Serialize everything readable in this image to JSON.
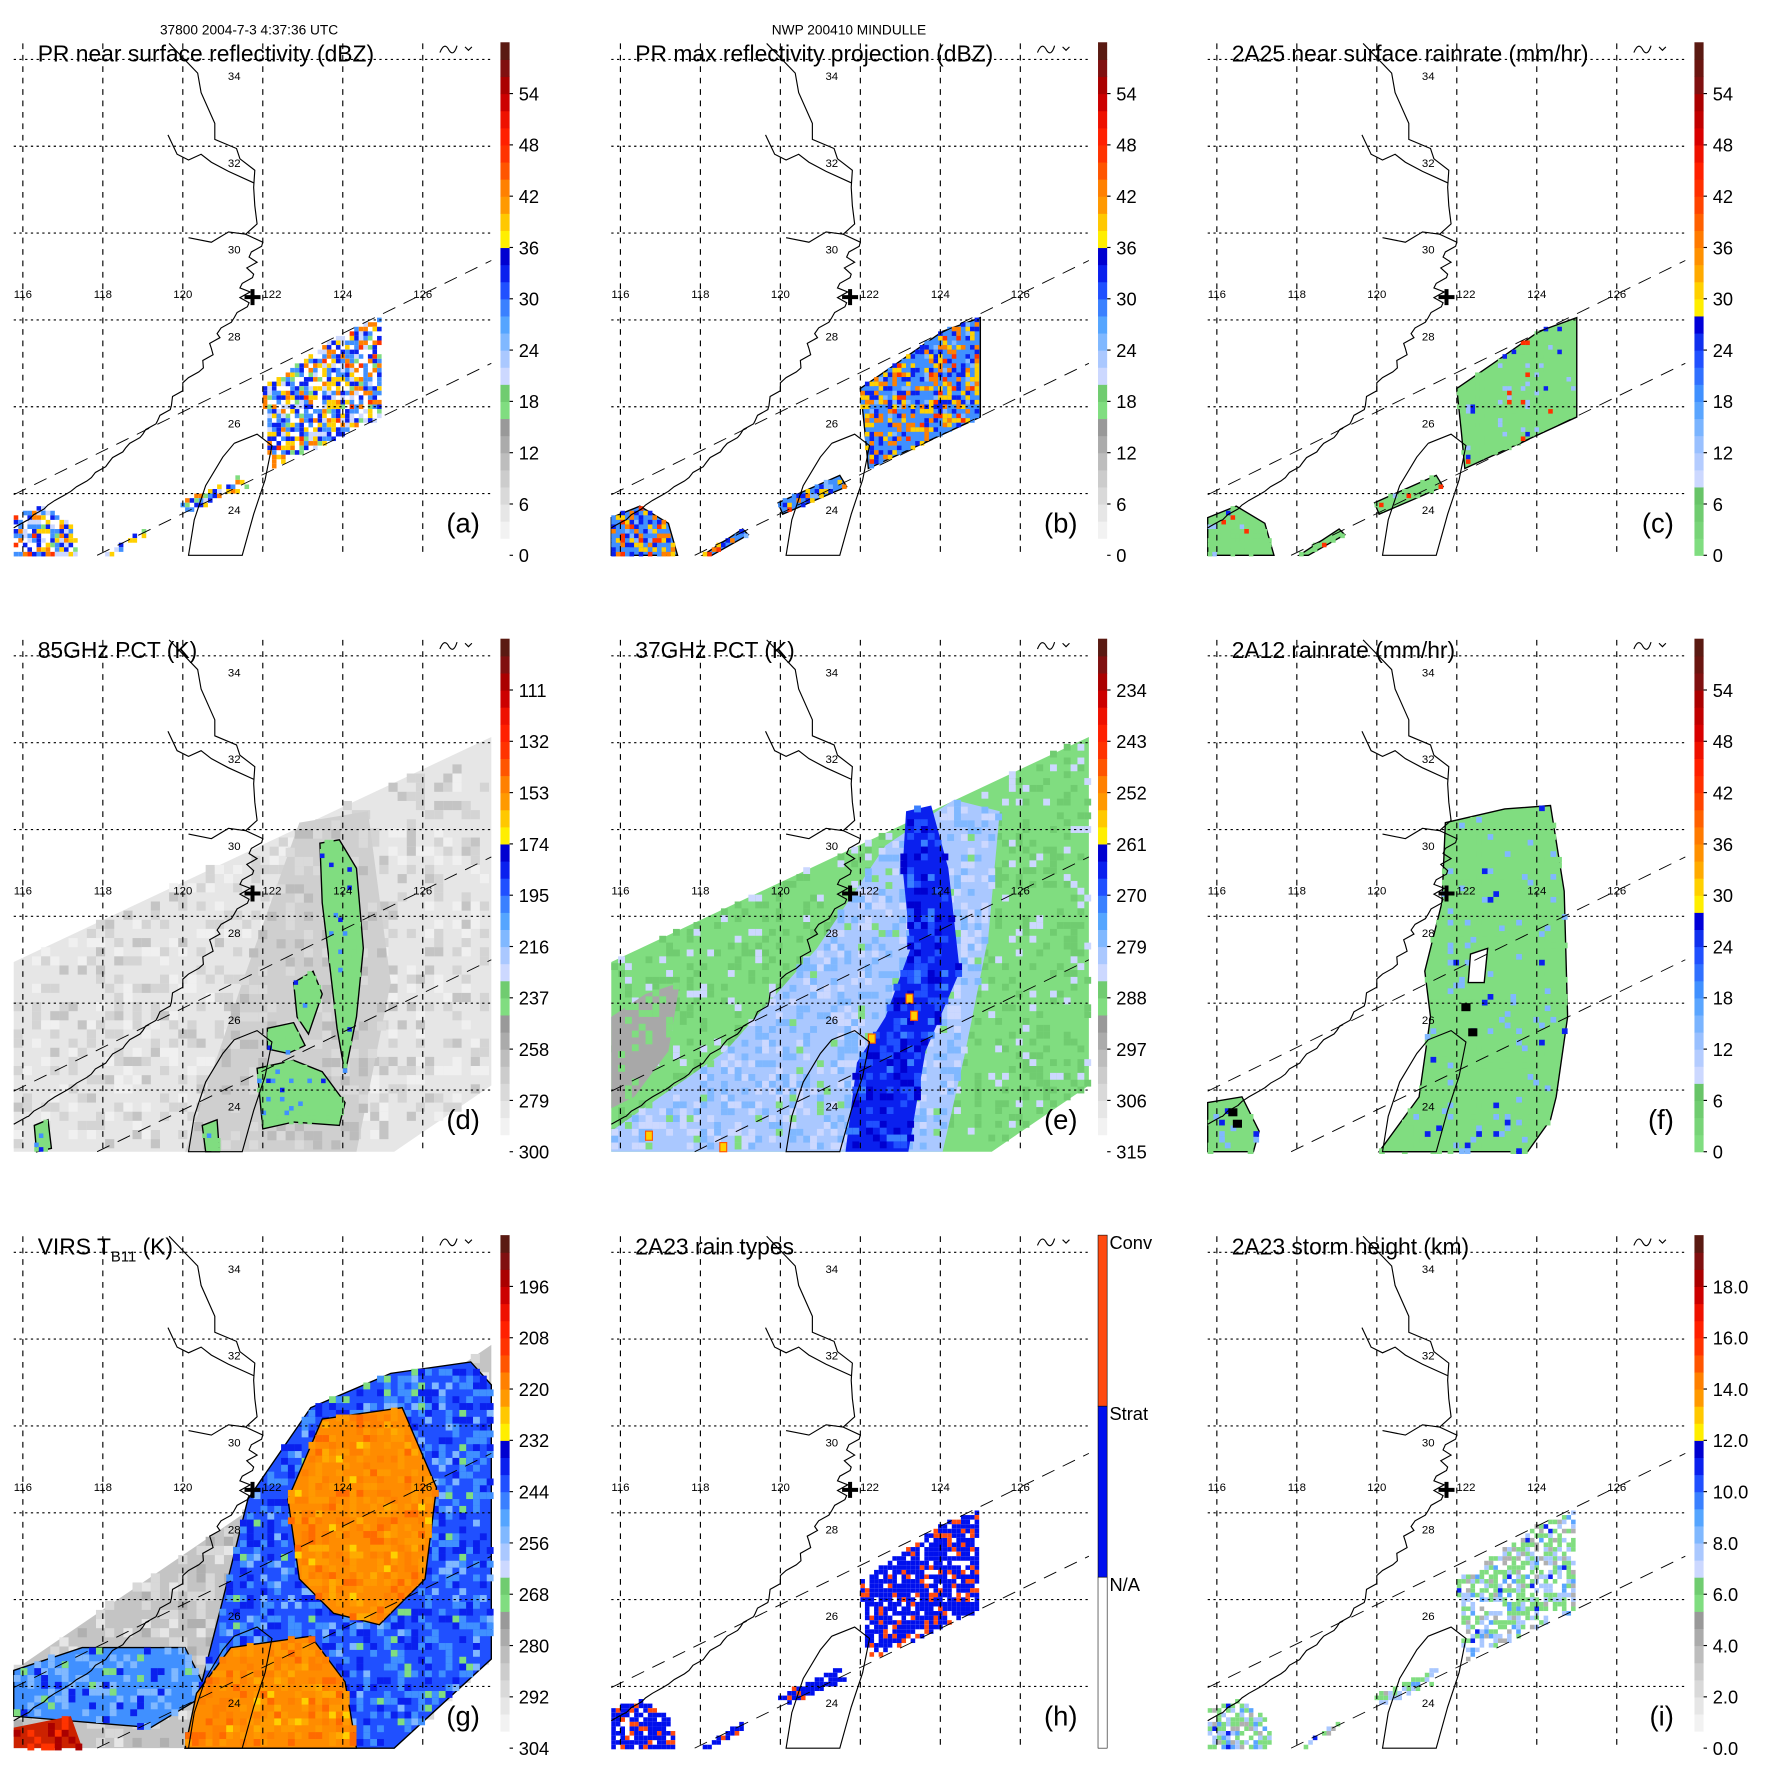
{
  "header": {
    "left": "37800 2004-7-3 4:37:36 UTC",
    "center": "NWP 200410 MINDULLE"
  },
  "map": {
    "lon_labels": [
      "116",
      "118",
      "120",
      "122",
      "124",
      "126"
    ],
    "lat_labels": [
      "34",
      "32",
      "30",
      "28",
      "26",
      "24"
    ]
  },
  "palettes": {
    "standard": [
      "#ffffff",
      "#f2f2f2",
      "#e6e6e6",
      "#d9d9d9",
      "#cccccc",
      "#bdbdbd",
      "#ababab",
      "#999999",
      "#80dd80",
      "#70cc70",
      "#ccd8ff",
      "#aac8ff",
      "#80b8ff",
      "#55a5ff",
      "#3a80ff",
      "#2050ff",
      "#0a20ee",
      "#0000d0",
      "#ffee00",
      "#ffc800",
      "#ff9900",
      "#ff8000",
      "#ff5500",
      "#ff3300",
      "#ff2000",
      "#ee1100",
      "#cc0000",
      "#aa0000",
      "#801010",
      "#5a1a12"
    ],
    "rain": [
      "#80dd80",
      "#78d478",
      "#70cc70",
      "#68c468",
      "#ccd8ff",
      "#b4ccff",
      "#99c0ff",
      "#7ab4ff",
      "#5aa5ff",
      "#4090ff",
      "#3070ff",
      "#2050ff",
      "#1030ee",
      "#0000d8",
      "#ffee00",
      "#ffd000",
      "#ffaa00",
      "#ff9000",
      "#ff7a00",
      "#ff6000",
      "#ff4400",
      "#ff3000",
      "#ff2000",
      "#ee1100",
      "#d80000",
      "#c00000",
      "#aa0000",
      "#801010",
      "#6a1510",
      "#5a1a12"
    ]
  },
  "chart_data": {
    "type": "heatmap",
    "panels": [
      {
        "id": "a",
        "title": "PR near surface reflectivity (dBZ)",
        "label": "(a)",
        "palette": "standard",
        "colorbar": {
          "min": 0,
          "max": 60,
          "ticks": [
            "0",
            "6",
            "12",
            "18",
            "24",
            "30",
            "36",
            "42",
            "48",
            "54"
          ]
        }
      },
      {
        "id": "b",
        "title": "PR max reflectivity projection (dBZ)",
        "label": "(b)",
        "palette": "standard",
        "colorbar": {
          "min": 0,
          "max": 60,
          "ticks": [
            "0",
            "6",
            "12",
            "18",
            "24",
            "30",
            "36",
            "42",
            "48",
            "54"
          ]
        }
      },
      {
        "id": "c",
        "title": "2A25 near surface rainrate (mm/hr)",
        "label": "(c)",
        "palette": "rain",
        "colorbar": {
          "min": 0,
          "max": 60,
          "ticks": [
            "0",
            "6",
            "12",
            "18",
            "24",
            "30",
            "36",
            "42",
            "48",
            "54"
          ]
        }
      },
      {
        "id": "d",
        "title": "85GHz PCT (K)",
        "label": "(d)",
        "palette": "standard",
        "colorbar": {
          "min": 300,
          "max": 90,
          "ticks": [
            "300",
            "279",
            "258",
            "237",
            "216",
            "195",
            "174",
            "153",
            "132",
            "111"
          ]
        }
      },
      {
        "id": "e",
        "title": "37GHz PCT (K)",
        "label": "(e)",
        "palette": "standard",
        "colorbar": {
          "min": 315,
          "max": 225,
          "ticks": [
            "315",
            "306",
            "297",
            "288",
            "279",
            "270",
            "261",
            "252",
            "243",
            "234"
          ]
        }
      },
      {
        "id": "f",
        "title": "2A12 rainrate (mm/hr)",
        "label": "(f)",
        "palette": "rain",
        "colorbar": {
          "min": 0,
          "max": 60,
          "ticks": [
            "0",
            "6",
            "12",
            "18",
            "24",
            "30",
            "36",
            "42",
            "48",
            "54"
          ]
        }
      },
      {
        "id": "g",
        "title": "VIRS T",
        "title_sub": "B11",
        "title_tail": " (K)",
        "label": "(g)",
        "palette": "standard",
        "colorbar": {
          "min": 304,
          "max": 184,
          "ticks": [
            "304",
            "292",
            "280",
            "268",
            "256",
            "244",
            "232",
            "220",
            "208",
            "196"
          ]
        }
      },
      {
        "id": "h",
        "title": "2A23 rain types",
        "label": "(h)",
        "categories": [
          {
            "label": "N/A",
            "color": "#ffffff"
          },
          {
            "label": "Strat",
            "color": "#0010ee"
          },
          {
            "label": "Conv",
            "color": "#ff4a10"
          }
        ]
      },
      {
        "id": "i",
        "title": "2A23 storm height (km)",
        "label": "(i)",
        "palette": "standard",
        "colorbar": {
          "min": 0,
          "max": 20,
          "ticks": [
            "0.0",
            "2.0",
            "4.0",
            "6.0",
            "8.0",
            "10.0",
            "12.0",
            "14.0",
            "16.0",
            "18.0"
          ]
        }
      }
    ]
  }
}
